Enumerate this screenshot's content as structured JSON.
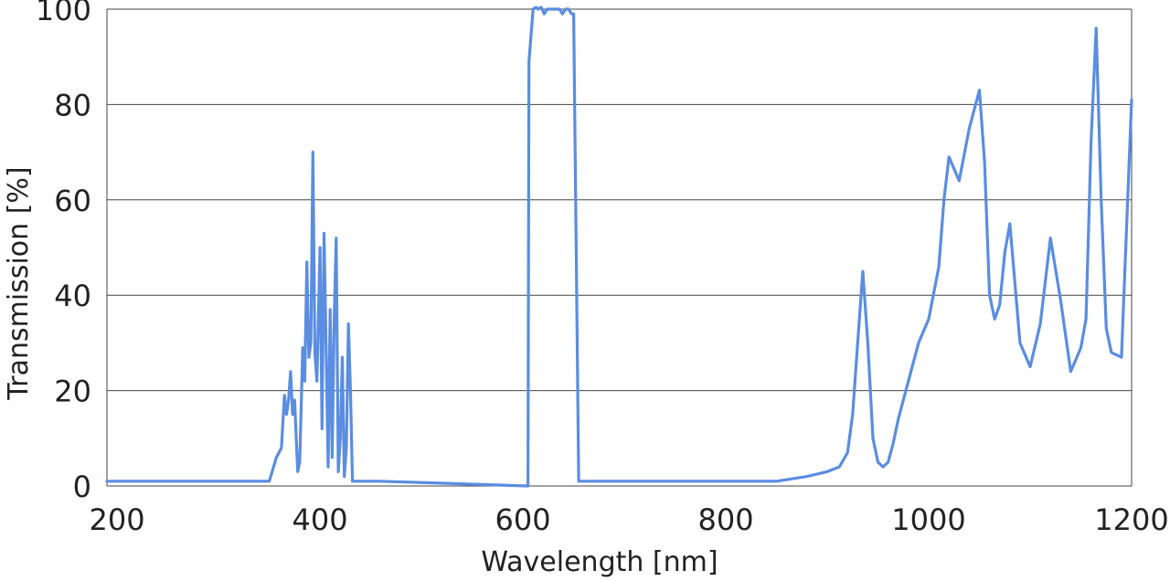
{
  "chart_data": {
    "type": "line",
    "xlabel": "Wavelength [nm]",
    "ylabel": "Transmission [%]",
    "xlim": [
      190,
      1200
    ],
    "ylim": [
      0,
      100
    ],
    "x_ticks": [
      "200",
      "400",
      "600",
      "800",
      "1000",
      "1200"
    ],
    "y_ticks": [
      "0",
      "20",
      "40",
      "60",
      "80",
      "100"
    ],
    "grid": "horizontal",
    "line_color": "#5b8de0",
    "series": [
      {
        "x": [
          190,
          350,
          357,
          362,
          365,
          367,
          369,
          371,
          373,
          375,
          378,
          380,
          383,
          385,
          387,
          389,
          391,
          393,
          395,
          397,
          400,
          402,
          404,
          406,
          408,
          410,
          412,
          414,
          416,
          418,
          420,
          422,
          424,
          426,
          428,
          430,
          432,
          434,
          436,
          438,
          440,
          442,
          444,
          446,
          448,
          450,
          452,
          455,
          460,
          605,
          606,
          610,
          613,
          615,
          618,
          621,
          624,
          627,
          630,
          633,
          636,
          639,
          642,
          645,
          648,
          650,
          655,
          656,
          660,
          661,
          700,
          850,
          880,
          900,
          912,
          920,
          925,
          930,
          935,
          940,
          945,
          950,
          955,
          960,
          965,
          970,
          980,
          990,
          1000,
          1010,
          1015,
          1020,
          1030,
          1040,
          1050,
          1055,
          1060,
          1065,
          1070,
          1075,
          1080,
          1090,
          1100,
          1110,
          1120,
          1130,
          1140,
          1150,
          1155,
          1160,
          1165,
          1170,
          1175,
          1180,
          1190,
          1200
        ],
        "y": [
          1,
          1,
          6,
          8,
          19,
          15,
          18,
          24,
          15,
          18,
          3,
          5,
          29,
          22,
          47,
          27,
          30,
          70,
          28,
          22,
          50,
          12,
          53,
          30,
          4,
          37,
          6,
          35,
          52,
          3,
          10,
          27,
          2,
          8,
          34,
          20,
          1,
          1,
          1,
          1,
          1,
          1,
          1,
          1,
          1,
          1,
          1,
          1,
          1,
          0,
          89,
          100,
          101,
          100,
          101,
          99,
          100,
          100,
          100,
          100,
          100,
          99,
          100,
          100,
          99,
          99,
          1,
          1,
          1,
          1,
          1,
          1,
          2,
          3,
          4,
          7,
          15,
          30,
          45,
          30,
          10,
          5,
          4,
          5,
          9,
          14,
          22,
          30,
          35,
          46,
          60,
          69,
          64,
          75,
          83,
          68,
          40,
          35,
          38,
          49,
          55,
          30,
          25,
          34,
          52,
          39,
          24,
          29,
          35,
          72,
          96,
          60,
          33,
          28,
          27,
          81
        ]
      }
    ]
  }
}
